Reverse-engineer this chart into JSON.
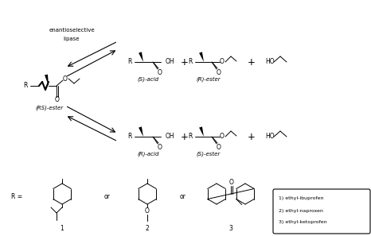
{
  "bg_color": "#ffffff",
  "line_color": "#000000",
  "text_color": "#000000",
  "fig_width": 4.66,
  "fig_height": 2.97,
  "dpi": 100,
  "legend_items": [
    "1) ethyl-ibuprofen",
    "2) ethyl-naproxen",
    "3) ethyl-ketoprofen"
  ],
  "font_size_small": 5.5,
  "font_size_label": 5.0,
  "font_size_tiny": 4.5
}
